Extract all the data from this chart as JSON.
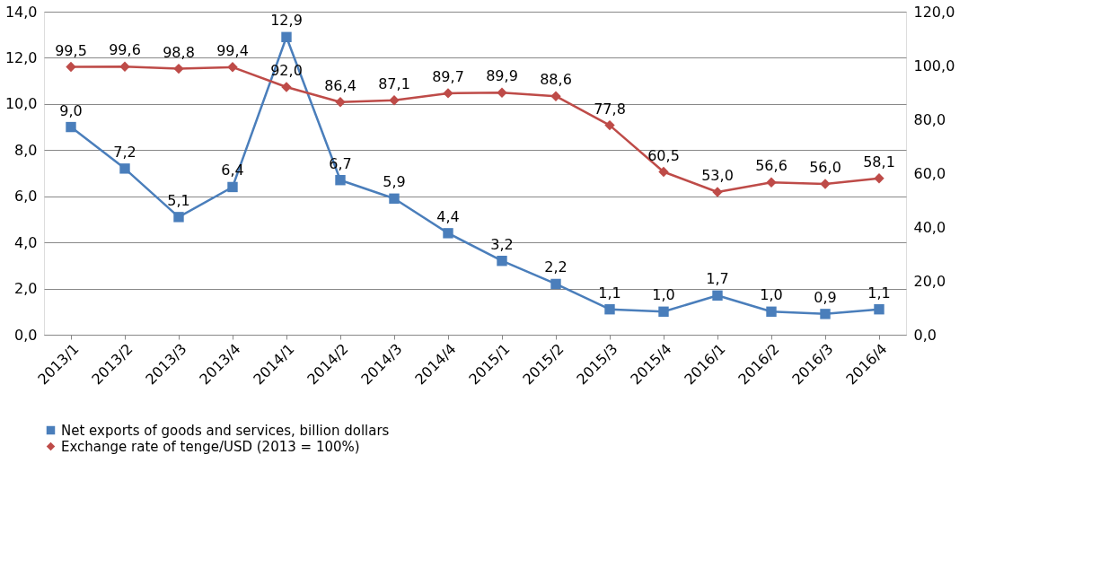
{
  "chart_data": {
    "type": "line",
    "categories": [
      "2013/1",
      "2013/2",
      "2013/3",
      "2013/4",
      "2014/1",
      "2014/2",
      "2014/3",
      "2014/4",
      "2015/1",
      "2015/2",
      "2015/3",
      "2015/4",
      "2016/1",
      "2016/2",
      "2016/3",
      "2016/4"
    ],
    "series": [
      {
        "name": "Net exports of goods and services, billion dollars",
        "color": "#4a7ebb",
        "marker": "square",
        "values": [
          9.0,
          7.2,
          5.1,
          6.4,
          12.9,
          6.7,
          5.9,
          4.4,
          3.2,
          2.2,
          1.1,
          1.0,
          1.7,
          1.0,
          0.9,
          1.1
        ],
        "value_labels": [
          "9,0",
          "7,2",
          "5,1",
          "6,4",
          "12,9",
          "6,7",
          "5,9",
          "4,4",
          "3,2",
          "2,2",
          "1,1",
          "1,0",
          "1,7",
          "1,0",
          "0,9",
          "1,1"
        ]
      },
      {
        "name": "Exchange rate of tenge/USD (2013 = 100%)",
        "color": "#be4b48",
        "marker": "diamond",
        "axis": "y2",
        "values": [
          99.5,
          99.6,
          98.8,
          99.4,
          92.0,
          86.4,
          87.1,
          89.7,
          89.9,
          88.6,
          77.8,
          60.5,
          53.0,
          56.6,
          56.0,
          58.1
        ],
        "value_labels": [
          "99,5",
          "99,6",
          "98,8",
          "99,4",
          "92,0",
          "86,4",
          "87,1",
          "89,7",
          "89,9",
          "88,6",
          "77,8",
          "60,5",
          "53,0",
          "56,6",
          "56,0",
          "58,1"
        ]
      }
    ],
    "ylim": [
      0,
      14
    ],
    "yticks": [
      {
        "value": 0,
        "label": "0,0"
      },
      {
        "value": 2,
        "label": "2,0"
      },
      {
        "value": 4,
        "label": "4,0"
      },
      {
        "value": 6,
        "label": "6,0"
      },
      {
        "value": 8,
        "label": "8,0"
      },
      {
        "value": 10,
        "label": "10,0"
      },
      {
        "value": 12,
        "label": "12,0"
      },
      {
        "value": 14,
        "label": "14,0"
      }
    ],
    "y2lim": [
      0,
      120
    ],
    "y2ticks": [
      {
        "value": 0,
        "label": "0,0"
      },
      {
        "value": 20,
        "label": "20,0"
      },
      {
        "value": 40,
        "label": "40,0"
      },
      {
        "value": 60,
        "label": "60,0"
      },
      {
        "value": 80,
        "label": "80,0"
      },
      {
        "value": 100,
        "label": "100,0"
      },
      {
        "value": 120,
        "label": "120,0"
      }
    ],
    "grid": "y",
    "legend": "bottom",
    "line_style": "solid"
  }
}
